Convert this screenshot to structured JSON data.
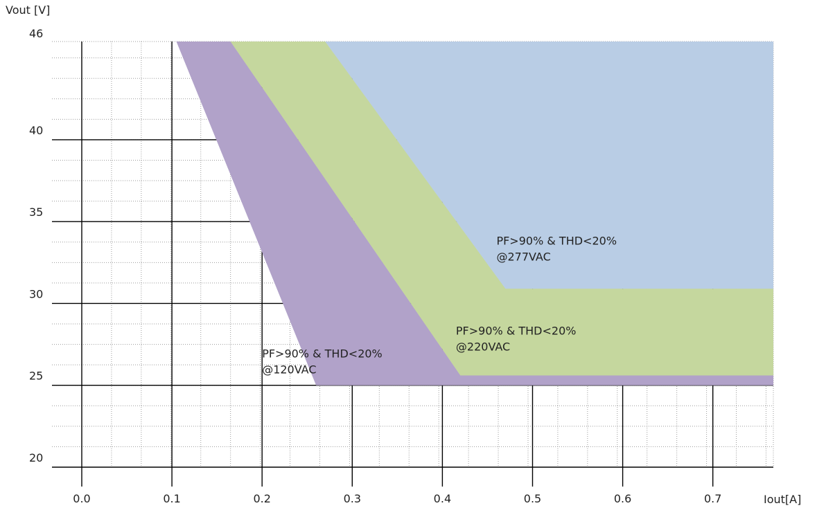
{
  "chart_data": {
    "type": "area",
    "title": "",
    "xlabel": "Iout[A]",
    "ylabel": "Vout [V]",
    "xlim": [
      0.0,
      0.8
    ],
    "ylim": [
      20,
      46
    ],
    "x_ticks": [
      "0.0",
      "0.1",
      "0.2",
      "0.3",
      "0.4",
      "0.5",
      "0.6",
      "0.7"
    ],
    "y_ticks": [
      "20",
      "25",
      "30",
      "35",
      "40",
      "46"
    ],
    "x_minor_step": 0.033,
    "y_minor_step": 1.25,
    "grid": true,
    "regions": [
      {
        "label_lines": [
          "PF>90% & THD<20%",
          "@120VAC"
        ],
        "color": "#b1a2c9",
        "polygon": [
          [
            0.105,
            46
          ],
          [
            0.165,
            46
          ],
          [
            0.42,
            25.6
          ],
          [
            0.8,
            25.6
          ],
          [
            0.8,
            25.0
          ],
          [
            0.26,
            25.0
          ]
        ],
        "label_at": [
          0.2,
          26.7
        ]
      },
      {
        "label_lines": [
          "PF>90% & THD<20%",
          "@220VAC"
        ],
        "color": "#c5d79e",
        "polygon": [
          [
            0.165,
            46
          ],
          [
            0.27,
            46
          ],
          [
            0.47,
            30.9
          ],
          [
            0.8,
            30.9
          ],
          [
            0.8,
            25.6
          ],
          [
            0.42,
            25.6
          ]
        ],
        "label_at": [
          0.415,
          28.1
        ]
      },
      {
        "label_lines": [
          "PF>90% & THD<20%",
          "@277VAC"
        ],
        "color": "#b9cde5",
        "polygon": [
          [
            0.27,
            46
          ],
          [
            0.8,
            46
          ],
          [
            0.8,
            30.9
          ],
          [
            0.47,
            30.9
          ]
        ],
        "label_at": [
          0.46,
          33.6
        ]
      }
    ]
  }
}
